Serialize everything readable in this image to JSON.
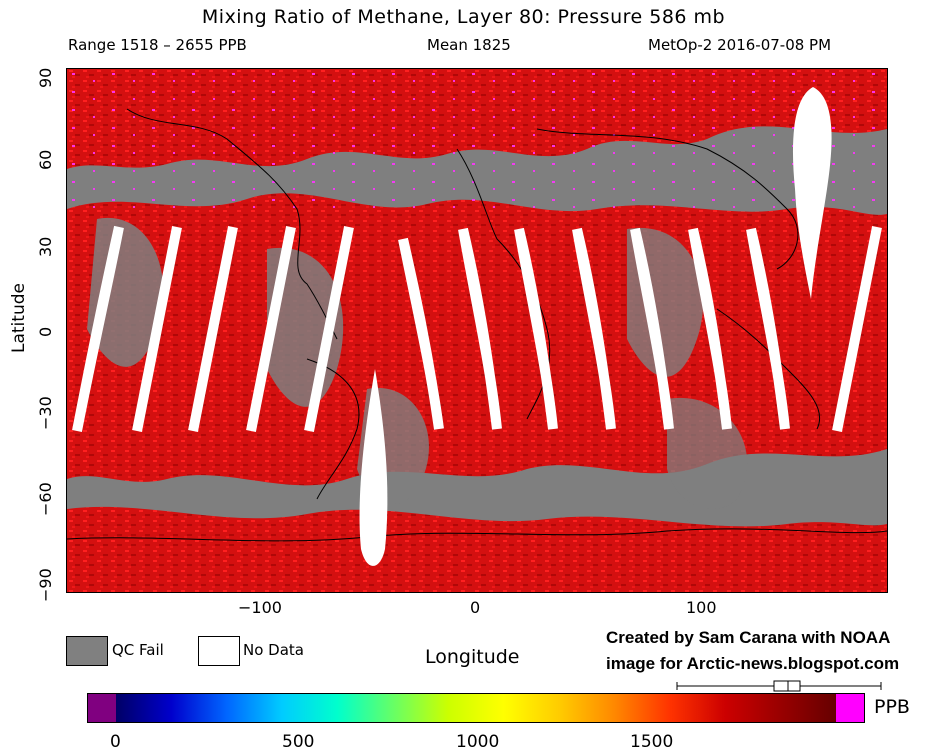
{
  "title": "Mixing Ratio of Methane, Layer 80: Pressure 586 mb",
  "range_text": "Range 1518 – 2655 PPB",
  "mean_text": "Mean 1825",
  "satellite_text": "MetOp-2 2016-07-08 PM",
  "axes": {
    "ylabel": "Latitude",
    "xlabel": "Longitude",
    "yticks": [
      "90",
      "60",
      "30",
      "0",
      "−30",
      "−60",
      "−90"
    ],
    "xticks": [
      "−100",
      "0",
      "100"
    ]
  },
  "legend": {
    "qc_fail": "QC Fail",
    "no_data": "No Data",
    "qc_fail_color": "#808080",
    "no_data_color": "#ffffff"
  },
  "credit": {
    "line1": "Created by Sam Carana with NOAA",
    "line2": "image for Arctic-news.blogspot.com"
  },
  "colorbar": {
    "unit": "PPB",
    "ticks": [
      "0",
      "500",
      "1000",
      "1500"
    ],
    "low_color": "#800080",
    "high_color": "#ff00ff",
    "gradient": [
      "#000066",
      "#0000cc",
      "#0066ff",
      "#00ccff",
      "#00ffcc",
      "#66ff66",
      "#ccff00",
      "#ffff00",
      "#ffcc00",
      "#ff8800",
      "#ff3300",
      "#cc0000",
      "#990000",
      "#660000"
    ]
  },
  "map_colors": {
    "background": "#7f7f7f",
    "methane": "#e01010",
    "high": "#ff33ff",
    "coast": "#000000"
  }
}
